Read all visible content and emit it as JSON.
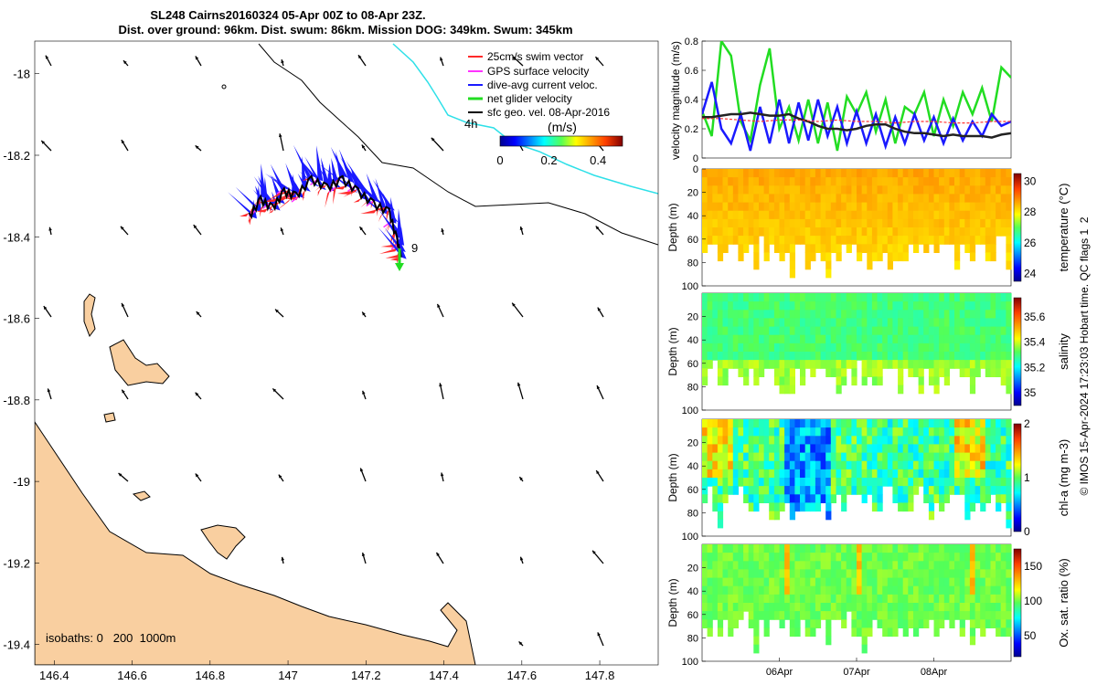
{
  "title_line1": "SL248 Cairns20160324 05-Apr 00Z to 08-Apr 23Z.",
  "title_line2": "Dist. over ground: 96km. Dist. swum: 86km. Mission DOG: 349km. Swum: 345km",
  "side_note": "© IMOS 15-Apr-2024 17:23:03 Hobart time. QC flags 1  2",
  "colors": {
    "land": "#f9cfa0",
    "coast": "#000000",
    "isobath_200": "#000000",
    "isobath_1000": "#2ee0e8",
    "swim_vector": "#ff2a2a",
    "gps_velocity": "#ff33ff",
    "dive_avg_current": "#1a1aff",
    "net_glider_velocity": "#22dd22",
    "geo_velocity": "#000000"
  },
  "chart_data": [
    {
      "type": "map",
      "xlim": [
        146.35,
        147.95
      ],
      "ylim": [
        -19.45,
        -17.92
      ],
      "x_ticks": [
        "146.4",
        "146.6",
        "146.8",
        "147",
        "147.2",
        "147.4",
        "147.6",
        "147.8"
      ],
      "y_ticks": [
        "-18",
        "-18.2",
        "-18.4",
        "-18.6",
        "-18.8",
        "-19",
        "-19.2",
        "-19.4"
      ],
      "legend": [
        "25cm/s swim vector",
        "GPS surface velocity",
        "dive-avg current veloc.",
        "net glider velocity",
        "sfc geo. vel. 08-Apr-2016"
      ],
      "legend_placement": "top-right",
      "colorbar_label": "(m/s)",
      "colorbar_ticks": [
        "0",
        "0.2",
        "0.4"
      ],
      "colorbar_range": [
        0,
        0.5
      ],
      "track_labels": [
        "4h",
        "9"
      ],
      "isobaths_note": "isobaths: 0   200  1000m",
      "glider_track": [
        {
          "lon": 146.9,
          "lat": -18.35
        },
        {
          "lon": 146.93,
          "lat": -18.31
        },
        {
          "lon": 146.96,
          "lat": -18.33
        },
        {
          "lon": 146.99,
          "lat": -18.29
        },
        {
          "lon": 147.02,
          "lat": -18.3
        },
        {
          "lon": 147.06,
          "lat": -18.26
        },
        {
          "lon": 147.1,
          "lat": -18.28
        },
        {
          "lon": 147.14,
          "lat": -18.26
        },
        {
          "lon": 147.18,
          "lat": -18.29
        },
        {
          "lon": 147.22,
          "lat": -18.32
        },
        {
          "lon": 147.26,
          "lat": -18.34
        },
        {
          "lon": 147.28,
          "lat": -18.41
        },
        {
          "lon": 147.29,
          "lat": -18.45
        }
      ]
    },
    {
      "type": "line",
      "ylabel": "velocity magnitude (m/s)",
      "ylim": [
        0,
        0.8
      ],
      "y_ticks": [
        "0",
        "0.2",
        "0.4",
        "0.6",
        "0.8"
      ],
      "x_range_days": [
        0,
        4
      ],
      "series": [
        {
          "color": "#22dd22",
          "values": [
            0.32,
            0.15,
            0.8,
            0.7,
            0.25,
            0.12,
            0.5,
            0.75,
            0.2,
            0.35,
            0.12,
            0.4,
            0.1,
            0.38,
            0.05,
            0.42,
            0.3,
            0.45,
            0.18,
            0.4,
            0.1,
            0.35,
            0.3,
            0.45,
            0.15,
            0.4,
            0.22,
            0.45,
            0.3,
            0.48,
            0.25,
            0.62,
            0.55
          ]
        },
        {
          "color": "#1a1aff",
          "values": [
            0.3,
            0.52,
            0.2,
            0.1,
            0.3,
            0.05,
            0.35,
            0.1,
            0.4,
            0.1,
            0.38,
            0.12,
            0.4,
            0.15,
            0.35,
            0.1,
            0.32,
            0.1,
            0.3,
            0.08,
            0.28,
            0.1,
            0.3,
            0.12,
            0.28,
            0.1,
            0.27,
            0.12,
            0.25,
            0.15,
            0.3,
            0.22,
            0.25
          ]
        },
        {
          "color": "#222222",
          "values": [
            0.28,
            0.28,
            0.29,
            0.3,
            0.3,
            0.31,
            0.3,
            0.29,
            0.29,
            0.3,
            0.27,
            0.25,
            0.22,
            0.2,
            0.2,
            0.19,
            0.2,
            0.22,
            0.23,
            0.23,
            0.2,
            0.18,
            0.17,
            0.17,
            0.16,
            0.15,
            0.16,
            0.15,
            0.15,
            0.15,
            0.14,
            0.16,
            0.17
          ]
        },
        {
          "color": "#ff3333",
          "dashed": true,
          "values": [
            0.27,
            0.27,
            0.26,
            0.25,
            0.26,
            0.26,
            0.25,
            0.26,
            0.25,
            0.25,
            0.24,
            0.25,
            0.25,
            0.24,
            0.24,
            0.25,
            0.25
          ]
        }
      ]
    },
    {
      "type": "heatmap",
      "ylabel": "Depth (m)",
      "ylim": [
        100,
        0
      ],
      "y_ticks": [
        "0",
        "20",
        "40",
        "60",
        "80",
        "100"
      ],
      "colorbar_label": "temperature (°C)",
      "colorbar_ticks": [
        "24",
        "26",
        "28",
        "30"
      ],
      "colorbar_range": [
        23.5,
        30.5
      ],
      "typical_value": 28.6
    },
    {
      "type": "heatmap",
      "ylabel": "Depth (m)",
      "ylim": [
        100,
        0
      ],
      "y_ticks": [
        "20",
        "40",
        "60",
        "80",
        "100"
      ],
      "colorbar_label": "salinity",
      "colorbar_ticks": [
        "35",
        "35.2",
        "35.4",
        "35.6"
      ],
      "colorbar_range": [
        34.9,
        35.75
      ],
      "typical_value": 35.3
    },
    {
      "type": "heatmap",
      "ylabel": "Depth (m)",
      "ylim": [
        100,
        0
      ],
      "y_ticks": [
        "20",
        "40",
        "60",
        "80",
        "100"
      ],
      "colorbar_label": "chl-a (mg m-3)",
      "colorbar_ticks": [
        "0",
        "1",
        "2"
      ],
      "colorbar_range": [
        0,
        2
      ],
      "typical_value": 0.9
    },
    {
      "type": "heatmap",
      "ylabel": "Depth (m)",
      "ylim": [
        100,
        0
      ],
      "y_ticks": [
        "20",
        "40",
        "60",
        "80",
        "100"
      ],
      "x_ticks": [
        "06Apr",
        "07Apr",
        "08Apr"
      ],
      "colorbar_label": "Ox. sat. ratio (%)",
      "colorbar_ticks": [
        "50",
        "100",
        "150"
      ],
      "colorbar_range": [
        20,
        175
      ],
      "typical_value": 100
    }
  ]
}
